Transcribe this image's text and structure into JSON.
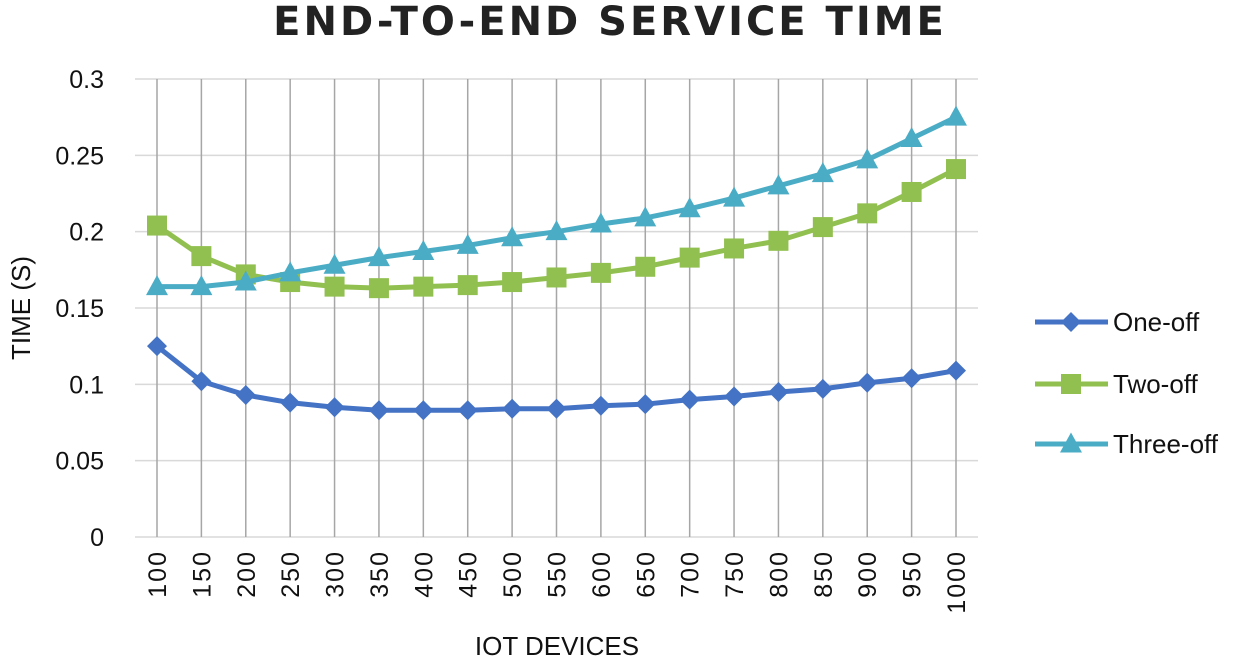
{
  "chart_data": {
    "type": "line",
    "title": "END-TO-END SERVICE TIME",
    "xlabel": "IOT DEVICES",
    "ylabel": "TIME (S)",
    "ylim": [
      0,
      0.3
    ],
    "yticks": [
      0,
      0.05,
      0.1,
      0.15,
      0.2,
      0.25,
      0.3
    ],
    "ytick_labels": [
      "0",
      "0.05",
      "0.1",
      "0.15",
      "0.2",
      "0.25",
      "0.3"
    ],
    "categories": [
      "100",
      "150",
      "200",
      "250",
      "300",
      "350",
      "400",
      "450",
      "500",
      "550",
      "600",
      "650",
      "700",
      "750",
      "800",
      "850",
      "900",
      "950",
      "1000"
    ],
    "grid": "horizontal and vertical",
    "legend_position": "right",
    "series": [
      {
        "name": "One-off",
        "color": "#4472C4",
        "marker": "diamond",
        "values": [
          0.125,
          0.102,
          0.093,
          0.088,
          0.085,
          0.083,
          0.083,
          0.083,
          0.084,
          0.084,
          0.086,
          0.087,
          0.09,
          0.092,
          0.095,
          0.097,
          0.101,
          0.104,
          0.109
        ]
      },
      {
        "name": "Two-off",
        "color": "#92C050",
        "marker": "square",
        "values": [
          0.204,
          0.184,
          0.172,
          0.167,
          0.164,
          0.163,
          0.164,
          0.165,
          0.167,
          0.17,
          0.173,
          0.177,
          0.183,
          0.189,
          0.194,
          0.203,
          0.212,
          0.226,
          0.241
        ]
      },
      {
        "name": "Three-off",
        "color": "#4BACC6",
        "marker": "triangle",
        "values": [
          0.164,
          0.164,
          0.167,
          0.173,
          0.178,
          0.183,
          0.187,
          0.191,
          0.196,
          0.2,
          0.205,
          0.209,
          0.215,
          0.222,
          0.23,
          0.238,
          0.247,
          0.261,
          0.275
        ]
      }
    ]
  }
}
